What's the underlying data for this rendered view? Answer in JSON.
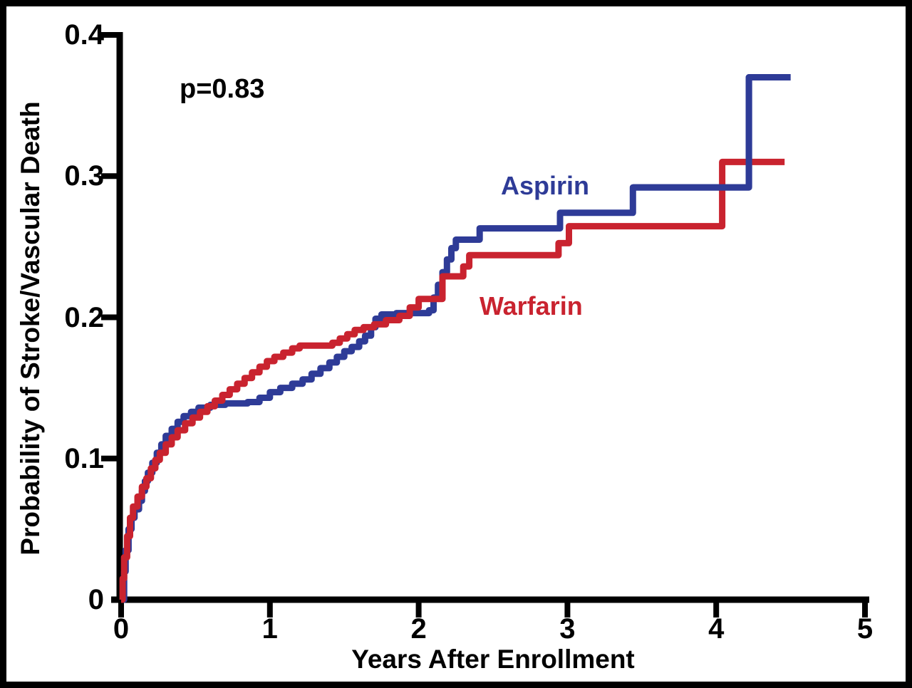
{
  "chart_data": {
    "type": "line",
    "subtype": "kaplan-meier-step",
    "title": "",
    "xlabel": "Years After Enrollment",
    "ylabel": "Probability of Stroke/Vascular Death",
    "annotation": "p=0.83",
    "xlim": [
      0,
      5
    ],
    "ylim": [
      0,
      0.4
    ],
    "xticks": [
      "0",
      "1",
      "2",
      "3",
      "4",
      "5"
    ],
    "xtick_values": [
      0,
      1,
      2,
      3,
      4,
      5
    ],
    "yticks": [
      "0",
      "0.1",
      "0.2",
      "0.3",
      "0.4"
    ],
    "ytick_values": [
      0,
      0.1,
      0.2,
      0.3,
      0.4
    ],
    "grid": false,
    "legend_position": "inline-labels",
    "colors": {
      "axis": "#000000",
      "background": "#ffffff",
      "aspirin": "#2E3B97",
      "warfarin": "#C9232F"
    },
    "series": [
      {
        "name": "Aspirin",
        "color": "#2E3B97",
        "points": [
          [
            0,
            0
          ],
          [
            0.02,
            0.02
          ],
          [
            0.03,
            0.035
          ],
          [
            0.05,
            0.05
          ],
          [
            0.07,
            0.058
          ],
          [
            0.09,
            0.064
          ],
          [
            0.12,
            0.07
          ],
          [
            0.14,
            0.077
          ],
          [
            0.16,
            0.084
          ],
          [
            0.18,
            0.09
          ],
          [
            0.21,
            0.097
          ],
          [
            0.24,
            0.104
          ],
          [
            0.27,
            0.11
          ],
          [
            0.3,
            0.116
          ],
          [
            0.34,
            0.121
          ],
          [
            0.38,
            0.126
          ],
          [
            0.42,
            0.13
          ],
          [
            0.47,
            0.133
          ],
          [
            0.52,
            0.136
          ],
          [
            0.6,
            0.138
          ],
          [
            0.7,
            0.139
          ],
          [
            0.85,
            0.14
          ],
          [
            0.93,
            0.143
          ],
          [
            1.0,
            0.147
          ],
          [
            1.07,
            0.15
          ],
          [
            1.15,
            0.153
          ],
          [
            1.22,
            0.156
          ],
          [
            1.28,
            0.16
          ],
          [
            1.34,
            0.164
          ],
          [
            1.4,
            0.168
          ],
          [
            1.45,
            0.172
          ],
          [
            1.5,
            0.176
          ],
          [
            1.55,
            0.179
          ],
          [
            1.6,
            0.183
          ],
          [
            1.64,
            0.187
          ],
          [
            1.68,
            0.193
          ],
          [
            1.71,
            0.199
          ],
          [
            1.75,
            0.202
          ],
          [
            1.85,
            0.203
          ],
          [
            2.07,
            0.205
          ],
          [
            2.1,
            0.214
          ],
          [
            2.13,
            0.223
          ],
          [
            2.16,
            0.232
          ],
          [
            2.19,
            0.241
          ],
          [
            2.22,
            0.249
          ],
          [
            2.25,
            0.255
          ],
          [
            2.41,
            0.263
          ],
          [
            2.95,
            0.274
          ],
          [
            3.44,
            0.292
          ],
          [
            4.22,
            0.37
          ],
          [
            4.5,
            0.37
          ]
        ]
      },
      {
        "name": "Warfarin",
        "color": "#C9232F",
        "points": [
          [
            0,
            0
          ],
          [
            0.01,
            0.015
          ],
          [
            0.02,
            0.03
          ],
          [
            0.04,
            0.045
          ],
          [
            0.06,
            0.058
          ],
          [
            0.08,
            0.066
          ],
          [
            0.11,
            0.073
          ],
          [
            0.14,
            0.08
          ],
          [
            0.17,
            0.086
          ],
          [
            0.2,
            0.093
          ],
          [
            0.23,
            0.099
          ],
          [
            0.26,
            0.104
          ],
          [
            0.3,
            0.11
          ],
          [
            0.34,
            0.115
          ],
          [
            0.38,
            0.12
          ],
          [
            0.43,
            0.125
          ],
          [
            0.48,
            0.129
          ],
          [
            0.53,
            0.133
          ],
          [
            0.58,
            0.137
          ],
          [
            0.63,
            0.141
          ],
          [
            0.68,
            0.145
          ],
          [
            0.73,
            0.149
          ],
          [
            0.78,
            0.153
          ],
          [
            0.83,
            0.157
          ],
          [
            0.88,
            0.161
          ],
          [
            0.93,
            0.165
          ],
          [
            0.98,
            0.169
          ],
          [
            1.03,
            0.172
          ],
          [
            1.09,
            0.175
          ],
          [
            1.15,
            0.178
          ],
          [
            1.2,
            0.18
          ],
          [
            1.42,
            0.182
          ],
          [
            1.47,
            0.185
          ],
          [
            1.52,
            0.188
          ],
          [
            1.57,
            0.191
          ],
          [
            1.63,
            0.193
          ],
          [
            1.7,
            0.195
          ],
          [
            1.78,
            0.198
          ],
          [
            1.87,
            0.201
          ],
          [
            1.94,
            0.207
          ],
          [
            2.0,
            0.213
          ],
          [
            2.16,
            0.229
          ],
          [
            2.3,
            0.236
          ],
          [
            2.34,
            0.244
          ],
          [
            2.94,
            0.2525
          ],
          [
            3.01,
            0.2645
          ],
          [
            4.04,
            0.31
          ],
          [
            4.46,
            0.31
          ]
        ]
      }
    ]
  }
}
